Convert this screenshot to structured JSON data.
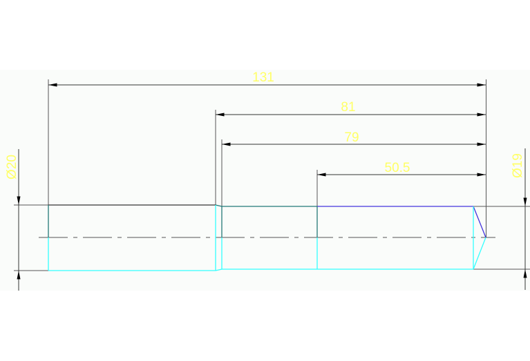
{
  "drawing": {
    "dimensions": {
      "overall_length": "131",
      "length_81": "81",
      "length_79": "79",
      "length_50_5": "50.5",
      "diameter_left": "Ø20",
      "diameter_right": "Ø19"
    },
    "colors": {
      "background": "#fafcfa",
      "dimension_text": "#ffff66",
      "dimension_line": "#333333",
      "outline_cyan": "#33ffff",
      "outline_blue": "#4433dd",
      "outline_teal": "#227777",
      "centerline": "#555555"
    }
  }
}
